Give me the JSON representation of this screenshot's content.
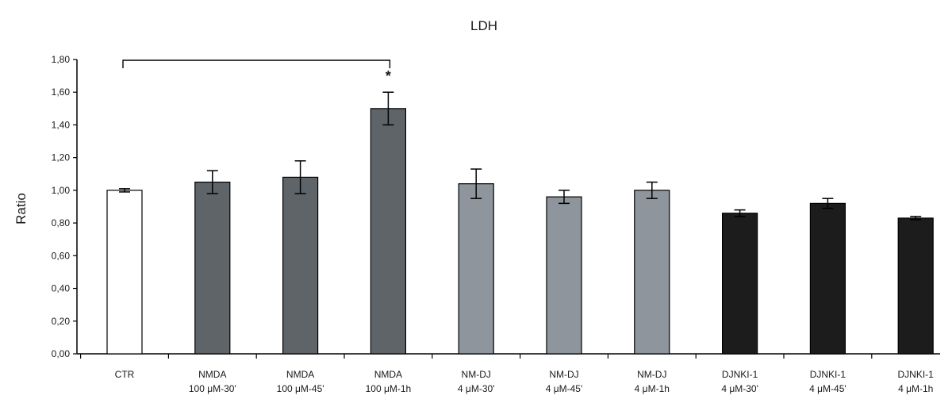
{
  "chart_data": {
    "type": "bar",
    "title": "LDH",
    "xlabel": "",
    "ylabel": "Ratio",
    "ylim": [
      0,
      1.8
    ],
    "yticks": [
      "0,00",
      "0,20",
      "0,40",
      "0,60",
      "0,80",
      "1,00",
      "1,20",
      "1,40",
      "1,60",
      "1,80"
    ],
    "grid": false,
    "legend": "none",
    "categories": [
      [
        "CTR"
      ],
      [
        "NMDA",
        "100 μM-30'"
      ],
      [
        "NMDA",
        "100 μM-45'"
      ],
      [
        "NMDA",
        "100 μM-1h"
      ],
      [
        "NM-DJ",
        "4 μM-30'"
      ],
      [
        "NM-DJ",
        "4 μM-45'"
      ],
      [
        "NM-DJ",
        "4 μM-1h"
      ],
      [
        "DJNKI-1",
        "4 μM-30'"
      ],
      [
        "DJNKI-1",
        "4 μM-45'"
      ],
      [
        "DJNKI-1",
        "4 μM-1h"
      ]
    ],
    "values": [
      1.0,
      1.05,
      1.08,
      1.5,
      1.04,
      0.96,
      1.0,
      0.86,
      0.92,
      0.83
    ],
    "errors": [
      0.01,
      0.07,
      0.1,
      0.1,
      0.09,
      0.04,
      0.05,
      0.02,
      0.03,
      0.01
    ],
    "colors": [
      "#ffffff",
      "#5e6468",
      "#5e6468",
      "#5e6468",
      "#8e959c",
      "#8e959c",
      "#8e959c",
      "#1c1c1c",
      "#1c1c1c",
      "#1c1c1c"
    ],
    "significance": {
      "from": 0,
      "to": 3,
      "y": 1.8,
      "marker": "*",
      "marker_bar": 3
    }
  }
}
